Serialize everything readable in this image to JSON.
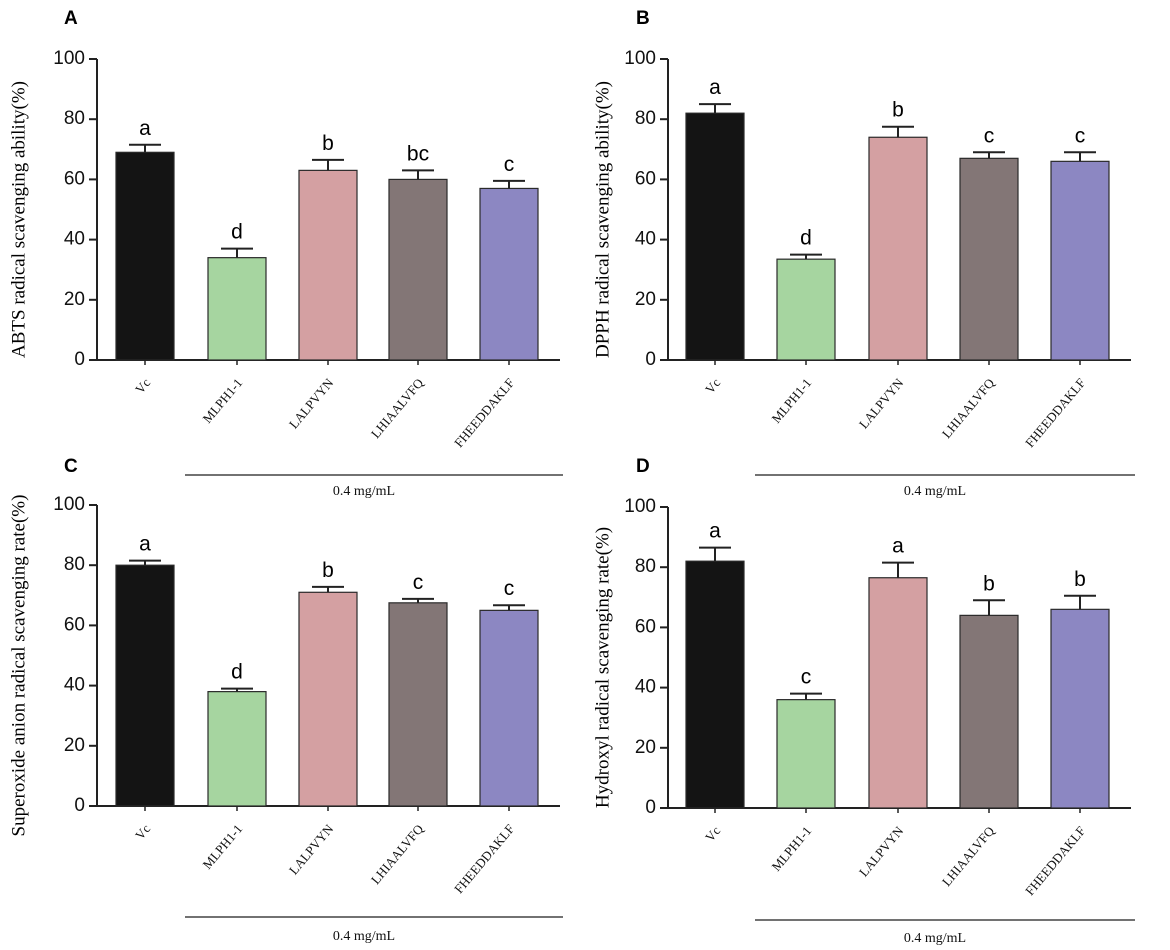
{
  "figure": {
    "colors": [
      "#141414",
      "#a6d5a0",
      "#d4a0a2",
      "#837676",
      "#8c87c2"
    ],
    "axis_color": "#222222"
  },
  "chart_data": [
    {
      "type": "bar",
      "panel_label": "A",
      "ylabel": "ABTS  radical scavenging ability(%)",
      "categories": [
        "Vc",
        "MLPH1-1",
        "LALPVYN",
        "LHIAALVFQ",
        "FHEEDDAKLF"
      ],
      "values": [
        69,
        34,
        63,
        60,
        57
      ],
      "errors": [
        2.5,
        3,
        3.5,
        3,
        2.5
      ],
      "letters": [
        "a",
        "d",
        "b",
        "bc",
        "c"
      ],
      "ylim": [
        0,
        100
      ],
      "yticks": [
        "0",
        "20",
        "40",
        "60",
        "80",
        "100"
      ],
      "group_label": "0.4 mg/mL"
    },
    {
      "type": "bar",
      "panel_label": "B",
      "ylabel": "DPPH  radical scavenging ability(%)",
      "categories": [
        "Vc",
        "MLPH1-1",
        "LALPVYN",
        "LHIAALVFQ",
        "FHEEDDAKLF"
      ],
      "values": [
        82,
        33.5,
        74,
        67,
        66
      ],
      "errors": [
        3,
        1.5,
        3.5,
        2,
        3
      ],
      "letters": [
        "a",
        "d",
        "b",
        "c",
        "c"
      ],
      "ylim": [
        0,
        100
      ],
      "yticks": [
        "0",
        "20",
        "40",
        "60",
        "80",
        "100"
      ],
      "group_label": "0.4 mg/mL"
    },
    {
      "type": "bar",
      "panel_label": "C",
      "ylabel": "Superoxide anion radical scavenging rate(%)",
      "categories": [
        "Vc",
        "MLPH1-1",
        "LALPVYN",
        "LHIAALVFQ",
        "FHEEDDAKLF"
      ],
      "values": [
        80,
        38,
        71,
        67.5,
        65
      ],
      "errors": [
        1.5,
        1,
        1.8,
        1.3,
        1.7
      ],
      "letters": [
        "a",
        "d",
        "b",
        "c",
        "c"
      ],
      "ylim": [
        0,
        100
      ],
      "yticks": [
        "0",
        "20",
        "40",
        "60",
        "80",
        "100"
      ],
      "group_label": "0.4 mg/mL"
    },
    {
      "type": "bar",
      "panel_label": "D",
      "ylabel": "Hydroxyl radical scavenging rate(%)",
      "categories": [
        "Vc",
        "MLPH1-1",
        "LALPVYN",
        "LHIAALVFQ",
        "FHEEDDAKLF"
      ],
      "values": [
        82,
        36,
        76.5,
        64,
        66
      ],
      "errors": [
        4.5,
        2,
        5,
        5,
        4.5
      ],
      "letters": [
        "a",
        "c",
        "a",
        "b",
        "b"
      ],
      "ylim": [
        0,
        100
      ],
      "yticks": [
        "0",
        "20",
        "40",
        "60",
        "80",
        "100"
      ],
      "group_label": "0.4 mg/mL"
    }
  ]
}
